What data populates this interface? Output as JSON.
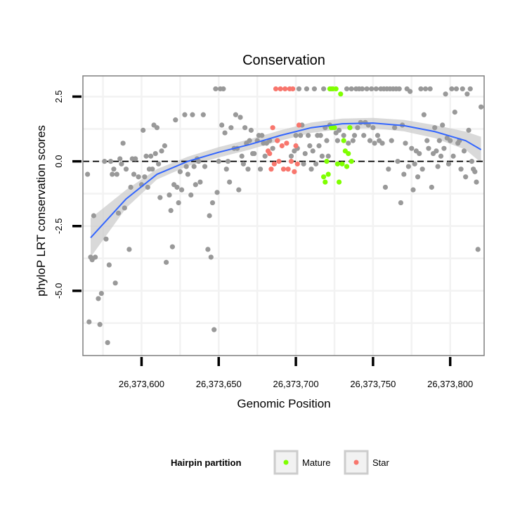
{
  "chart_data": {
    "type": "scatter",
    "title": "Conservation",
    "xlabel": "Genomic Position",
    "ylabel": "phyloP LRT conservation scores",
    "xlim": [
      26373562,
      26373822
    ],
    "ylim": [
      -7.5,
      3.3
    ],
    "x_ticks": [
      {
        "value": 26373600,
        "label": "26,373,600"
      },
      {
        "value": 26373650,
        "label": "26,373,650"
      },
      {
        "value": 26373700,
        "label": "26,373,700"
      },
      {
        "value": 26373750,
        "label": "26,373,750"
      },
      {
        "value": 26373800,
        "label": "26,373,800"
      }
    ],
    "y_ticks": [
      {
        "value": 2.5,
        "label": "2.5"
      },
      {
        "value": 0.0,
        "label": "0.0"
      },
      {
        "value": -2.5,
        "label": "-2.5"
      },
      {
        "value": -5.0,
        "label": "-5.0"
      }
    ],
    "reference_line": {
      "y": 0,
      "style": "dashed"
    },
    "grid": true,
    "legend": {
      "title": "Hairpin partition",
      "placement": "bottom",
      "entries": [
        {
          "label": "Mature",
          "color": "#7fff00"
        },
        {
          "label": "Star",
          "color": "#f8766d"
        }
      ]
    },
    "colors": {
      "other": "#999999",
      "mature": "#7fff00",
      "star": "#f8766d",
      "smooth": "#3366ff",
      "band": "#cccccc"
    },
    "smooth": {
      "x": [
        26373567,
        26373590,
        26373610,
        26373630,
        26373650,
        26373670,
        26373690,
        26373710,
        26373730,
        26373750,
        26373770,
        26373790,
        26373810,
        26373820
      ],
      "y": [
        -2.95,
        -1.45,
        -0.5,
        0.0,
        0.35,
        0.65,
        1.0,
        1.3,
        1.45,
        1.48,
        1.38,
        1.15,
        0.8,
        0.45
      ],
      "upper": [
        -2.2,
        -1.1,
        -0.3,
        0.18,
        0.55,
        0.85,
        1.2,
        1.5,
        1.65,
        1.68,
        1.6,
        1.4,
        1.15,
        0.95
      ],
      "lower": [
        -3.7,
        -1.8,
        -0.7,
        -0.18,
        0.15,
        0.45,
        0.8,
        1.1,
        1.25,
        1.28,
        1.16,
        0.9,
        0.45,
        -0.05
      ]
    },
    "series": [
      {
        "name": "Other",
        "color": "#999999",
        "points": [
          [
            26373565,
            -0.5
          ],
          [
            26373566,
            -6.2
          ],
          [
            26373567,
            -3.7
          ],
          [
            26373568,
            -3.8
          ],
          [
            26373569,
            -2.1
          ],
          [
            26373570,
            -3.7
          ],
          [
            26373572,
            -5.3
          ],
          [
            26373573,
            -6.3
          ],
          [
            26373574,
            -5.1
          ],
          [
            26373576,
            0.0
          ],
          [
            26373577,
            -3.0
          ],
          [
            26373578,
            -7.0
          ],
          [
            26373579,
            -4.0
          ],
          [
            26373580,
            0.0
          ],
          [
            26373581,
            -0.5
          ],
          [
            26373582,
            -0.3
          ],
          [
            26373583,
            -4.7
          ],
          [
            26373584,
            -0.5
          ],
          [
            26373585,
            -2.0
          ],
          [
            26373586,
            0.1
          ],
          [
            26373587,
            -0.1
          ],
          [
            26373588,
            0.7
          ],
          [
            26373589,
            -1.8
          ],
          [
            26373590,
            -0.3
          ],
          [
            26373592,
            -3.4
          ],
          [
            26373593,
            -1.0
          ],
          [
            26373594,
            0.1
          ],
          [
            26373595,
            -0.5
          ],
          [
            26373596,
            0.1
          ],
          [
            26373598,
            -0.6
          ],
          [
            26373600,
            -0.9
          ],
          [
            26373601,
            1.2
          ],
          [
            26373602,
            -0.6
          ],
          [
            26373603,
            0.2
          ],
          [
            26373604,
            -1.0
          ],
          [
            26373605,
            -0.3
          ],
          [
            26373606,
            0.2
          ],
          [
            26373607,
            -0.3
          ],
          [
            26373608,
            1.4
          ],
          [
            26373609,
            0.3
          ],
          [
            26373610,
            1.3
          ],
          [
            26373611,
            -0.1
          ],
          [
            26373612,
            -1.4
          ],
          [
            26373613,
            0.4
          ],
          [
            26373615,
            0.6
          ],
          [
            26373616,
            -3.9
          ],
          [
            26373618,
            -1.3
          ],
          [
            26373619,
            -1.9
          ],
          [
            26373620,
            -3.3
          ],
          [
            26373621,
            -0.9
          ],
          [
            26373622,
            1.6
          ],
          [
            26373623,
            -1.0
          ],
          [
            26373624,
            -1.6
          ],
          [
            26373625,
            -0.4
          ],
          [
            26373626,
            -1.1
          ],
          [
            26373628,
            1.8
          ],
          [
            26373629,
            -0.2
          ],
          [
            26373630,
            -0.5
          ],
          [
            26373632,
            -1.3
          ],
          [
            26373633,
            1.8
          ],
          [
            26373634,
            -0.2
          ],
          [
            26373635,
            -0.9
          ],
          [
            26373636,
            0.1
          ],
          [
            26373637,
            0.0
          ],
          [
            26373638,
            -0.8
          ],
          [
            26373640,
            1.8
          ],
          [
            26373641,
            -0.2
          ],
          [
            26373643,
            -3.4
          ],
          [
            26373644,
            -2.1
          ],
          [
            26373645,
            -3.7
          ],
          [
            26373646,
            -1.6
          ],
          [
            26373647,
            -6.5
          ],
          [
            26373648,
            2.8
          ],
          [
            26373649,
            -1.2
          ],
          [
            26373650,
            0.0
          ],
          [
            26373651,
            2.8
          ],
          [
            26373652,
            1.4
          ],
          [
            26373653,
            2.8
          ],
          [
            26373654,
            1.1
          ],
          [
            26373655,
            -0.3
          ],
          [
            26373656,
            0.0
          ],
          [
            26373657,
            -0.8
          ],
          [
            26373658,
            1.3
          ],
          [
            26373660,
            0.5
          ],
          [
            26373661,
            1.8
          ],
          [
            26373662,
            0.5
          ],
          [
            26373663,
            -1.1
          ],
          [
            26373664,
            1.7
          ],
          [
            26373665,
            0.2
          ],
          [
            26373666,
            -0.1
          ],
          [
            26373667,
            1.3
          ],
          [
            26373668,
            0.7
          ],
          [
            26373669,
            -0.3
          ],
          [
            26373670,
            0.8
          ],
          [
            26373671,
            1.2
          ],
          [
            26373672,
            0.3
          ],
          [
            26373673,
            0.3
          ],
          [
            26373675,
            0.8
          ],
          [
            26373676,
            1.0
          ],
          [
            26373677,
            -0.3
          ],
          [
            26373678,
            1.0
          ],
          [
            26373679,
            0.7
          ],
          [
            26373680,
            0.2
          ],
          [
            26373681,
            0.7
          ],
          [
            26373683,
            0.8
          ],
          [
            26373685,
            0.5
          ],
          [
            26373688,
            0.8
          ],
          [
            26373697,
            0.2
          ],
          [
            26373699,
            0.4
          ],
          [
            26373700,
            1.0
          ],
          [
            26373701,
            0.5
          ],
          [
            26373702,
            2.8
          ],
          [
            26373703,
            1.0
          ],
          [
            26373704,
            1.4
          ],
          [
            26373705,
            -0.1
          ],
          [
            26373706,
            0.3
          ],
          [
            26373707,
            2.8
          ],
          [
            26373708,
            1.0
          ],
          [
            26373709,
            0.6
          ],
          [
            26373710,
            -0.3
          ],
          [
            26373711,
            0.4
          ],
          [
            26373712,
            2.8
          ],
          [
            26373713,
            -0.1
          ],
          [
            26373714,
            1.0
          ],
          [
            26373715,
            0.6
          ],
          [
            26373716,
            1.0
          ],
          [
            26373717,
            0.2
          ],
          [
            26373718,
            2.8
          ],
          [
            26373719,
            1.3
          ],
          [
            26373720,
            0.8
          ],
          [
            26373721,
            0.2
          ],
          [
            26373722,
            1.4
          ],
          [
            26373723,
            2.8
          ],
          [
            26373724,
            1.3
          ],
          [
            26373726,
            1.1
          ],
          [
            26373727,
            0.8
          ],
          [
            26373728,
            1.2
          ],
          [
            26373731,
            1.0
          ],
          [
            26373733,
            2.8
          ],
          [
            26373734,
            0.7
          ],
          [
            26373735,
            1.3
          ],
          [
            26373736,
            2.8
          ],
          [
            26373737,
            0.8
          ],
          [
            26373738,
            1.0
          ],
          [
            26373739,
            2.8
          ],
          [
            26373740,
            1.3
          ],
          [
            26373741,
            2.8
          ],
          [
            26373742,
            1.5
          ],
          [
            26373743,
            2.8
          ],
          [
            26373744,
            1.0
          ],
          [
            26373745,
            1.5
          ],
          [
            26373746,
            2.8
          ],
          [
            26373747,
            1.4
          ],
          [
            26373748,
            0.8
          ],
          [
            26373749,
            2.8
          ],
          [
            26373750,
            1.3
          ],
          [
            26373751,
            0.7
          ],
          [
            26373752,
            2.8
          ],
          [
            26373753,
            1.0
          ],
          [
            26373754,
            0.8
          ],
          [
            26373755,
            2.8
          ],
          [
            26373756,
            0.7
          ],
          [
            26373757,
            2.8
          ],
          [
            26373758,
            -1.0
          ],
          [
            26373759,
            2.8
          ],
          [
            26373760,
            -0.3
          ],
          [
            26373761,
            2.8
          ],
          [
            26373762,
            0.8
          ],
          [
            26373763,
            2.8
          ],
          [
            26373764,
            1.3
          ],
          [
            26373765,
            2.8
          ],
          [
            26373766,
            0.0
          ],
          [
            26373767,
            2.8
          ],
          [
            26373768,
            -1.6
          ],
          [
            26373769,
            1.4
          ],
          [
            26373770,
            -0.5
          ],
          [
            26373771,
            0.7
          ],
          [
            26373772,
            2.8
          ],
          [
            26373773,
            -0.2
          ],
          [
            26373774,
            2.7
          ],
          [
            26373775,
            0.5
          ],
          [
            26373776,
            -1.1
          ],
          [
            26373777,
            -0.1
          ],
          [
            26373778,
            0.4
          ],
          [
            26373779,
            -0.6
          ],
          [
            26373780,
            0.3
          ],
          [
            26373781,
            2.8
          ],
          [
            26373782,
            -0.3
          ],
          [
            26373783,
            1.8
          ],
          [
            26373784,
            2.8
          ],
          [
            26373785,
            0.8
          ],
          [
            26373786,
            0.5
          ],
          [
            26373787,
            2.8
          ],
          [
            26373788,
            -1.0
          ],
          [
            26373789,
            0.3
          ],
          [
            26373790,
            1.3
          ],
          [
            26373791,
            0.4
          ],
          [
            26373792,
            -0.2
          ],
          [
            26373793,
            0.8
          ],
          [
            26373794,
            0.2
          ],
          [
            26373795,
            1.4
          ],
          [
            26373796,
            0.5
          ],
          [
            26373797,
            2.6
          ],
          [
            26373798,
            0.9
          ],
          [
            26373799,
            -0.1
          ],
          [
            26373800,
            0.8
          ],
          [
            26373801,
            2.8
          ],
          [
            26373802,
            0.2
          ],
          [
            26373803,
            1.9
          ],
          [
            26373804,
            2.8
          ],
          [
            26373805,
            0.7
          ],
          [
            26373806,
            0.8
          ],
          [
            26373807,
            -0.3
          ],
          [
            26373808,
            2.8
          ],
          [
            26373809,
            0.4
          ],
          [
            26373810,
            -0.6
          ],
          [
            26373811,
            2.6
          ],
          [
            26373812,
            1.2
          ],
          [
            26373813,
            2.8
          ],
          [
            26373814,
            0.0
          ],
          [
            26373815,
            -0.3
          ],
          [
            26373816,
            -0.4
          ],
          [
            26373817,
            -0.8
          ],
          [
            26373818,
            -3.4
          ],
          [
            26373820,
            2.1
          ]
        ]
      },
      {
        "name": "Mature",
        "color": "#7fff00",
        "points": [
          [
            26373718,
            -0.6
          ],
          [
            26373719,
            -0.8
          ],
          [
            26373720,
            0.0
          ],
          [
            26373721,
            -0.5
          ],
          [
            26373722,
            2.8
          ],
          [
            26373723,
            1.3
          ],
          [
            26373724,
            2.8
          ],
          [
            26373725,
            1.3
          ],
          [
            26373726,
            2.8
          ],
          [
            26373727,
            -0.1
          ],
          [
            26373728,
            -0.8
          ],
          [
            26373729,
            2.6
          ],
          [
            26373730,
            -0.1
          ],
          [
            26373731,
            0.8
          ],
          [
            26373732,
            0.4
          ],
          [
            26373733,
            -0.2
          ],
          [
            26373734,
            0.3
          ],
          [
            26373735,
            1.3
          ],
          [
            26373736,
            0.0
          ]
        ]
      },
      {
        "name": "Star",
        "color": "#f8766d",
        "points": [
          [
            26373682,
            0.4
          ],
          [
            26373683,
            0.3
          ],
          [
            26373684,
            -0.3
          ],
          [
            26373685,
            1.3
          ],
          [
            26373686,
            -0.1
          ],
          [
            26373687,
            2.8
          ],
          [
            26373688,
            0.8
          ],
          [
            26373689,
            0.0
          ],
          [
            26373690,
            2.8
          ],
          [
            26373691,
            0.6
          ],
          [
            26373692,
            -0.3
          ],
          [
            26373693,
            2.8
          ],
          [
            26373694,
            0.7
          ],
          [
            26373695,
            -0.3
          ],
          [
            26373696,
            2.8
          ],
          [
            26373697,
            0.0
          ],
          [
            26373698,
            2.8
          ],
          [
            26373699,
            -0.4
          ],
          [
            26373700,
            0.6
          ],
          [
            26373701,
            -0.1
          ],
          [
            26373702,
            1.4
          ]
        ]
      }
    ]
  }
}
